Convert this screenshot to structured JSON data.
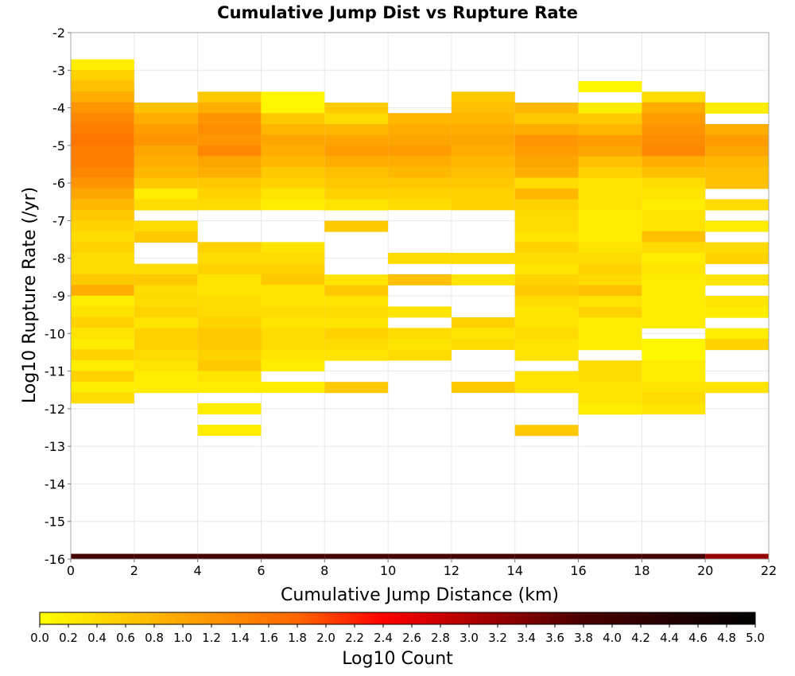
{
  "chart_data": {
    "type": "heatmap",
    "title": "Cumulative Jump Dist vs Rupture Rate",
    "xlabel": "Cumulative Jump Distance (km)",
    "ylabel": "Log10 Rupture Rate (/yr)",
    "xlim": [
      0,
      22
    ],
    "ylim": [
      -16,
      -2
    ],
    "x_ticks": [
      "0",
      "2",
      "4",
      "6",
      "8",
      "10",
      "12",
      "14",
      "16",
      "18",
      "20",
      "22"
    ],
    "y_ticks": [
      "-2",
      "-3",
      "-4",
      "-5",
      "-6",
      "-7",
      "-8",
      "-9",
      "-10",
      "-11",
      "-12",
      "-13",
      "-14",
      "-15",
      "-16"
    ],
    "grid": true,
    "x_bin_width": 2,
    "y_bin_height": 0.2857,
    "colorbar": {
      "label": "Log10 Count",
      "range": [
        0,
        5
      ],
      "ticks": [
        "0.0",
        "0.2",
        "0.4",
        "0.6",
        "0.8",
        "1.0",
        "1.2",
        "1.4",
        "1.6",
        "1.8",
        "2.0",
        "2.2",
        "2.4",
        "2.6",
        "2.8",
        "3.0",
        "3.2",
        "3.4",
        "3.6",
        "3.8",
        "4.0",
        "4.2",
        "4.4",
        "4.6",
        "4.8",
        "5.0"
      ],
      "colors": [
        "#ffff00",
        "#ffa500",
        "#ff6600",
        "#ff0000",
        "#4a0000",
        "#000000"
      ],
      "color_stops": [
        0,
        1.0,
        1.8,
        2.4,
        3.8,
        5.0
      ]
    },
    "columns": [
      {
        "x0": 0,
        "y_top": -2.71,
        "counts": [
          0.2,
          0.5,
          0.7,
          0.9,
          1.2,
          1.4,
          1.5,
          1.6,
          1.5,
          1.5,
          1.4,
          1.2,
          1.0,
          0.8,
          0.6,
          0.5,
          0.4,
          0.5,
          0.4,
          0.4,
          0.6,
          0.9,
          0.2,
          0.3,
          0.5,
          0.3,
          0.2,
          0.5,
          0.2,
          0.5,
          0.2,
          0.4
        ]
      },
      {
        "x0": 2,
        "y_top": -3.86,
        "counts": [
          0.7,
          0.9,
          1.1,
          1.2,
          1.0,
          0.9,
          0.8,
          0.6,
          0.2,
          0.4,
          null,
          0.4,
          0.6,
          null,
          null,
          0.4,
          0.6,
          0.4,
          0.4,
          0.5,
          0.3,
          0.5,
          0.5,
          0.4,
          0.3,
          0.2,
          0.2
        ]
      },
      {
        "x0": 4,
        "y_top": -3.57,
        "counts": [
          0.6,
          0.9,
          1.2,
          1.3,
          1.2,
          1.4,
          1.0,
          0.9,
          0.6,
          0.5,
          0.4,
          null,
          null,
          null,
          0.5,
          0.4,
          0.5,
          0.3,
          0.3,
          0.4,
          0.4,
          0.5,
          0.6,
          0.6,
          0.5,
          0.6,
          0.3,
          0.2,
          null,
          0.2,
          null,
          0.2
        ]
      },
      {
        "x0": 6,
        "y_top": -3.57,
        "counts": [
          0.1,
          0.1,
          0.6,
          0.8,
          1.0,
          0.9,
          0.8,
          0.6,
          0.5,
          0.3,
          0.2,
          null,
          null,
          null,
          0.3,
          0.4,
          0.5,
          0.6,
          0.3,
          0.3,
          0.4,
          0.3,
          0.4,
          0.4,
          0.3,
          0.2,
          null,
          0.2
        ]
      },
      {
        "x0": 8,
        "y_top": -3.86,
        "counts": [
          0.6,
          0.4,
          0.8,
          1.0,
          1.1,
          0.9,
          0.7,
          0.6,
          0.5,
          0.3,
          null,
          0.6,
          null,
          null,
          null,
          null,
          0.3,
          0.6,
          0.3,
          0.4,
          0.3,
          0.5,
          0.4,
          0.3,
          null,
          null,
          0.6
        ]
      },
      {
        "x0": 10,
        "y_top": -4.14,
        "counts": [
          0.8,
          0.9,
          1.0,
          1.1,
          0.9,
          0.8,
          0.6,
          0.5,
          0.4,
          null,
          null,
          null,
          null,
          0.4,
          null,
          0.7,
          null,
          null,
          0.3,
          null,
          0.4,
          0.3,
          0.4
        ]
      },
      {
        "x0": 12,
        "y_top": -3.57,
        "counts": [
          0.6,
          0.7,
          0.8,
          0.9,
          1.0,
          0.9,
          0.8,
          0.7,
          0.6,
          0.5,
          0.5,
          null,
          null,
          null,
          null,
          0.4,
          null,
          0.3,
          null,
          null,
          null,
          0.5,
          0.3,
          0.4,
          null,
          null,
          null,
          0.6
        ]
      },
      {
        "x0": 14,
        "y_top": -3.86,
        "counts": [
          0.8,
          0.6,
          0.9,
          1.2,
          1.1,
          1.0,
          0.9,
          0.4,
          0.8,
          0.5,
          0.4,
          0.4,
          0.3,
          0.5,
          0.4,
          0.3,
          0.5,
          0.6,
          0.4,
          0.3,
          0.3,
          0.4,
          0.3,
          0.3,
          null,
          0.3,
          0.3,
          null,
          null,
          null,
          0.6
        ]
      },
      {
        "x0": 16,
        "y_top": -3.29,
        "counts": [
          0.1,
          null,
          0.2,
          0.6,
          0.8,
          1.1,
          1.0,
          0.7,
          0.5,
          0.3,
          0.3,
          0.3,
          0.2,
          0.2,
          0.2,
          0.3,
          0.4,
          0.5,
          0.4,
          0.7,
          0.3,
          0.5,
          0.2,
          0.2,
          0.2,
          null,
          0.4,
          0.4,
          0.3,
          0.3,
          0.2
        ]
      },
      {
        "x0": 18,
        "y_top": -3.57,
        "counts": [
          0.4,
          0.9,
          1.1,
          1.2,
          1.3,
          1.4,
          0.9,
          0.7,
          0.4,
          0.3,
          0.2,
          0.3,
          0.3,
          0.7,
          0.4,
          0.2,
          0.3,
          0.2,
          0.2,
          0.2,
          0.2,
          0.2,
          null,
          0.1,
          0.1,
          0.2,
          0.2,
          0.3,
          0.4,
          0.3
        ]
      },
      {
        "x0": 20,
        "y_top": -3.86,
        "counts": [
          0.2,
          null,
          0.9,
          1.1,
          1.0,
          0.8,
          0.7,
          0.7,
          null,
          0.4,
          null,
          0.2,
          null,
          0.4,
          0.5,
          null,
          0.3,
          null,
          0.3,
          0.2,
          null,
          0.2,
          0.5,
          null,
          null,
          null,
          0.3
        ]
      }
    ],
    "bottom_band": {
      "y_range": [
        -16,
        -15.86
      ],
      "counts": [
        3.9,
        3.9,
        3.9,
        3.9,
        3.9,
        3.9,
        3.9,
        3.9,
        3.9,
        3.9,
        3.2
      ]
    }
  }
}
